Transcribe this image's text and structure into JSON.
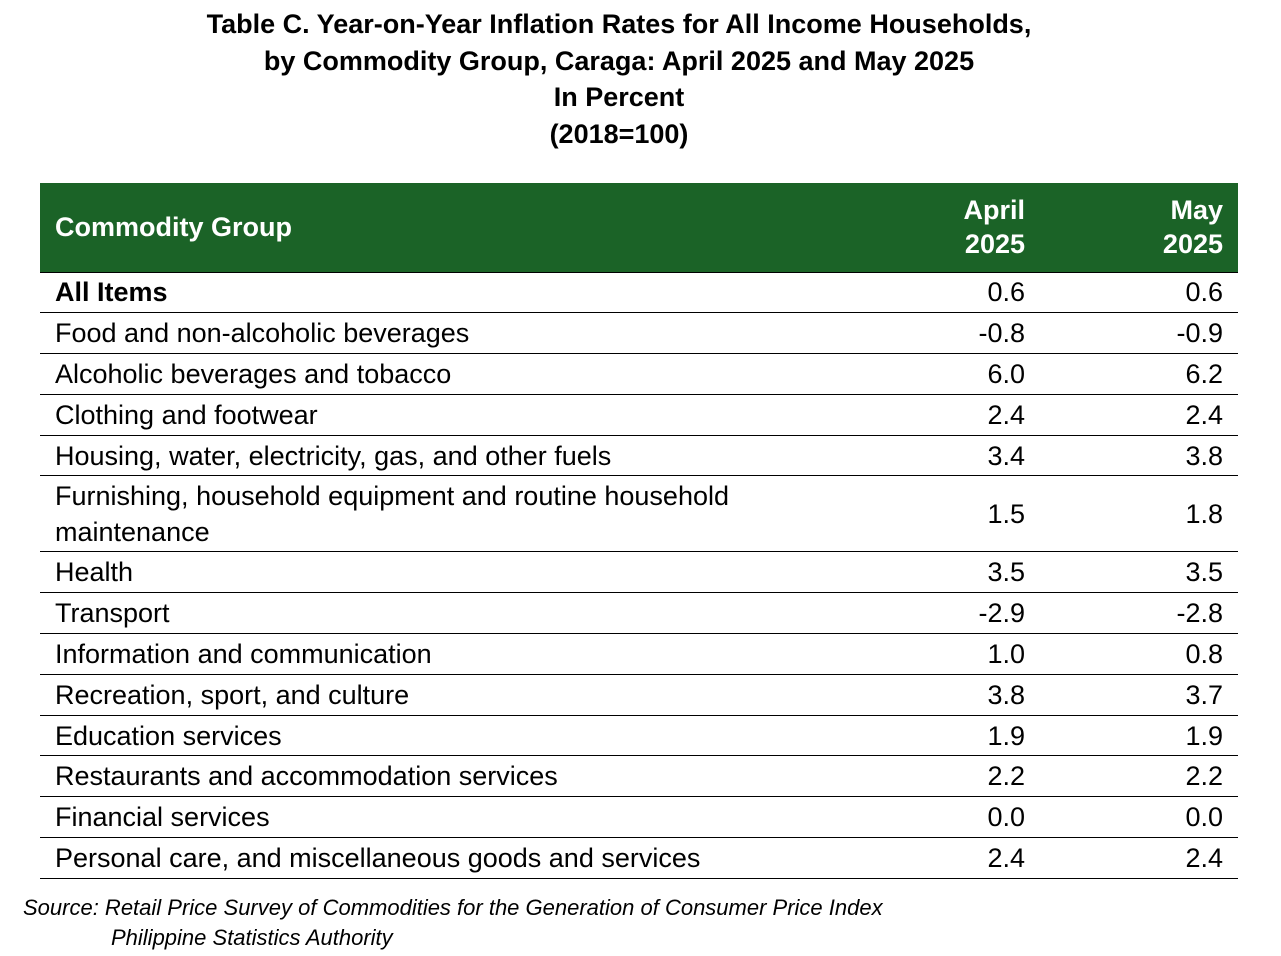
{
  "title": {
    "line1": "Table C. Year-on-Year Inflation Rates for All Income Households,",
    "line2": "by Commodity Group, Caraga: April 2025 and May 2025",
    "line3": "In Percent",
    "line4": "(2018=100)"
  },
  "header": {
    "group": "Commodity Group",
    "april_line1": "April",
    "april_line2": "2025",
    "may_line1": "May",
    "may_line2": "2025"
  },
  "chart_data": {
    "type": "table",
    "columns": [
      "Commodity Group",
      "April 2025",
      "May 2025"
    ],
    "rows": [
      {
        "label": "All Items",
        "april": "0.6",
        "may": "0.6"
      },
      {
        "label": "Food and non-alcoholic beverages",
        "april": "-0.8",
        "may": "-0.9"
      },
      {
        "label": "Alcoholic beverages and tobacco",
        "april": "6.0",
        "may": "6.2"
      },
      {
        "label": "Clothing and footwear",
        "april": "2.4",
        "may": "2.4"
      },
      {
        "label": "Housing, water, electricity, gas, and other fuels",
        "april": "3.4",
        "may": "3.8"
      },
      {
        "label": "Furnishing, household equipment and routine household maintenance",
        "april": "1.5",
        "may": "1.8"
      },
      {
        "label": "Health",
        "april": "3.5",
        "may": "3.5"
      },
      {
        "label": "Transport",
        "april": "-2.9",
        "may": "-2.8"
      },
      {
        "label": "Information and communication",
        "april": "1.0",
        "may": "0.8"
      },
      {
        "label": "Recreation, sport, and culture",
        "april": "3.8",
        "may": "3.7"
      },
      {
        "label": "Education services",
        "april": "1.9",
        "may": "1.9"
      },
      {
        "label": "Restaurants and accommodation services",
        "april": "2.2",
        "may": "2.2"
      },
      {
        "label": "Financial services",
        "april": "0.0",
        "may": "0.0"
      },
      {
        "label": "Personal care, and miscellaneous goods and services",
        "april": "2.4",
        "may": "2.4"
      }
    ]
  },
  "source": {
    "line1": "Source: Retail Price Survey of Commodities for the Generation of Consumer Price Index",
    "line2": "Philippine Statistics Authority"
  },
  "colors": {
    "header_background": "#1b6327",
    "header_text": "#ffffff"
  }
}
